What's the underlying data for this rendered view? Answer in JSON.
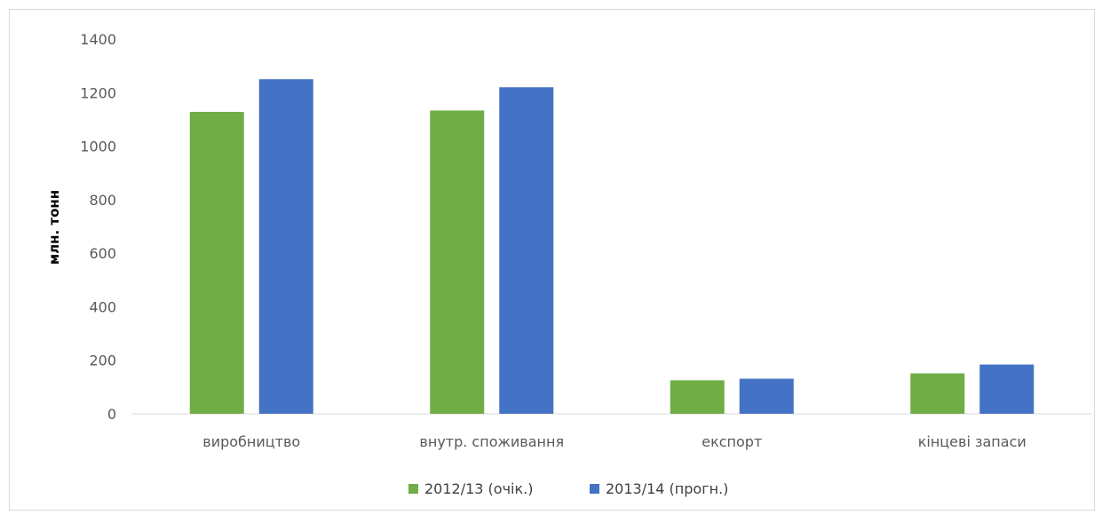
{
  "chart_data": {
    "type": "bar",
    "ylabel": "млн. тонн",
    "xlabel": "",
    "ylim": [
      0,
      1400
    ],
    "yticks": [
      0,
      200,
      400,
      600,
      800,
      1000,
      1200,
      1400
    ],
    "grid": false,
    "legend_position": "bottom",
    "categories": [
      "виробництво",
      "внутр. споживання",
      "експорт",
      "кінцеві запаси"
    ],
    "series": [
      {
        "name": "2012/13 (очік.)",
        "color": "#70ad47",
        "values": [
          1128,
          1133,
          125,
          151
        ]
      },
      {
        "name": "2013/14 (прогн.)",
        "color": "#4472c4",
        "values": [
          1250,
          1220,
          131,
          184
        ]
      }
    ]
  }
}
